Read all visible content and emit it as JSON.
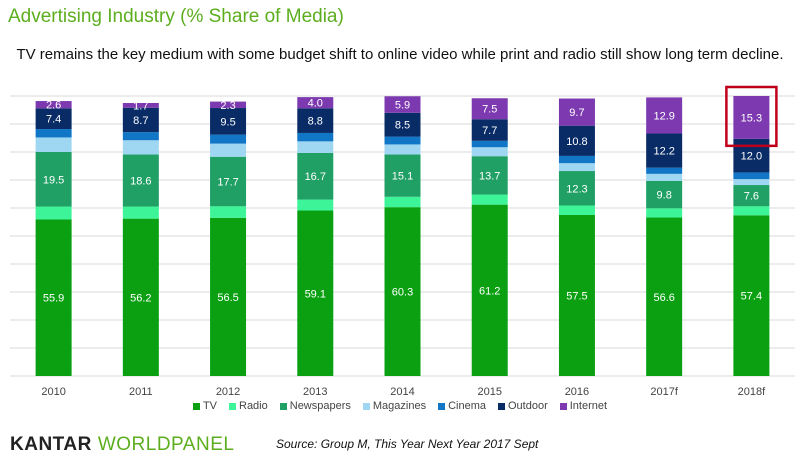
{
  "title": "Advertising Industry (% Share of Media)",
  "subtitle": "TV remains the key medium with some budget shift to online video while print and radio still show long term decline.",
  "source": "Source: Group M, This Year Next Year 2017 Sept",
  "brand": {
    "part1": "KANTAR",
    "part2": "WORLDPANEL",
    "color": "#5dae1f"
  },
  "chart_data": {
    "type": "bar",
    "stacked": true,
    "categories": [
      "2010",
      "2011",
      "2012",
      "2013",
      "2014",
      "2015",
      "2016",
      "2017f",
      "2018f"
    ],
    "ylim": [
      0,
      100
    ],
    "grid": true,
    "legend": "bottom",
    "highlight": {
      "category": "2018f",
      "series": "Internet",
      "color": "#c0001b"
    },
    "series": [
      {
        "name": "TV",
        "color": "#0aa012",
        "labeled": true,
        "values": [
          55.9,
          56.2,
          56.5,
          59.1,
          60.3,
          61.2,
          57.5,
          56.6,
          57.4
        ]
      },
      {
        "name": "Radio",
        "color": "#3df598",
        "labeled": false,
        "values": [
          4.6,
          4.3,
          4.1,
          3.9,
          3.7,
          3.6,
          3.4,
          3.3,
          3.2
        ]
      },
      {
        "name": "Newspapers",
        "color": "#20a065",
        "labeled": true,
        "values": [
          19.5,
          18.6,
          17.7,
          16.7,
          15.1,
          13.7,
          12.3,
          9.8,
          7.6
        ]
      },
      {
        "name": "Magazines",
        "color": "#9fd6f2",
        "labeled": false,
        "values": [
          5.2,
          5.1,
          4.7,
          4.1,
          3.6,
          3.2,
          2.8,
          2.5,
          2.1
        ]
      },
      {
        "name": "Cinema",
        "color": "#1176c6",
        "labeled": false,
        "values": [
          3.0,
          2.9,
          3.2,
          3.0,
          2.8,
          2.3,
          2.6,
          2.2,
          2.4
        ]
      },
      {
        "name": "Outdoor",
        "color": "#092b66",
        "labeled": true,
        "values": [
          7.4,
          8.7,
          9.5,
          8.8,
          8.5,
          7.7,
          10.8,
          12.2,
          12.0
        ]
      },
      {
        "name": "Internet",
        "color": "#7d3ab0",
        "labeled": true,
        "values": [
          2.6,
          1.7,
          2.3,
          4.0,
          5.9,
          7.5,
          9.7,
          12.9,
          15.3
        ]
      }
    ]
  }
}
